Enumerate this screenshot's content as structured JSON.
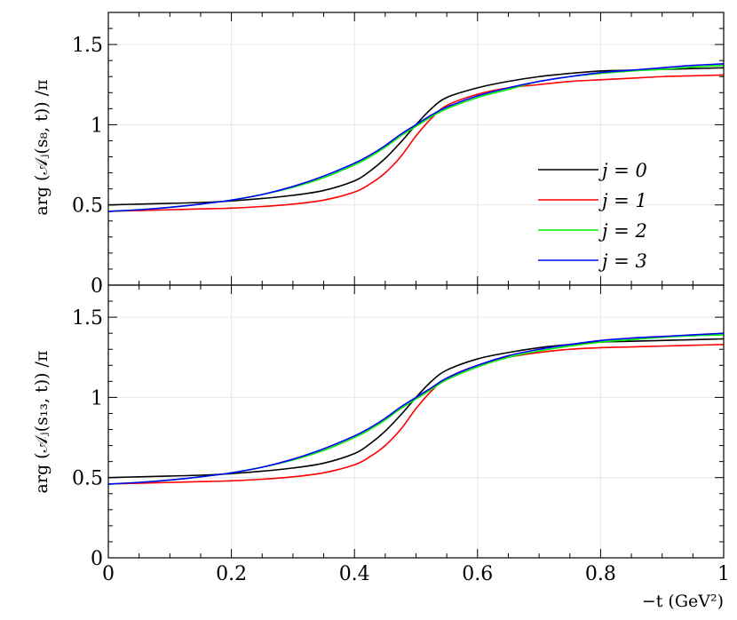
{
  "chart_data": [
    {
      "type": "line",
      "panel": "top",
      "ylabel": "arg (𝒜ⱼ(s₈, t)) /π",
      "xlabel": "",
      "xlim": [
        0,
        1
      ],
      "ylim": [
        0,
        1.7
      ],
      "grid": true,
      "legend_position": "right",
      "x_ticks": [],
      "y_ticks": [
        "0",
        "0.5",
        "1",
        "1.5"
      ],
      "x": [
        0,
        0.05,
        0.1,
        0.15,
        0.2,
        0.25,
        0.3,
        0.35,
        0.4,
        0.425,
        0.45,
        0.475,
        0.5,
        0.525,
        0.55,
        0.6,
        0.65,
        0.7,
        0.75,
        0.8,
        0.85,
        0.9,
        0.95,
        1.0
      ],
      "series": [
        {
          "name": "j = 0",
          "color": "#000000",
          "values": [
            0.5,
            0.505,
            0.51,
            0.515,
            0.525,
            0.54,
            0.56,
            0.59,
            0.65,
            0.71,
            0.79,
            0.89,
            1.0,
            1.1,
            1.17,
            1.23,
            1.27,
            1.3,
            1.32,
            1.335,
            1.34,
            1.345,
            1.35,
            1.355
          ]
        },
        {
          "name": "j = 1",
          "color": "#ff0000",
          "values": [
            0.46,
            0.465,
            0.47,
            0.475,
            0.48,
            0.49,
            0.505,
            0.53,
            0.58,
            0.63,
            0.7,
            0.8,
            0.93,
            1.04,
            1.12,
            1.19,
            1.23,
            1.25,
            1.27,
            1.28,
            1.29,
            1.3,
            1.305,
            1.31
          ]
        },
        {
          "name": "j = 2",
          "color": "#00ee00",
          "values": [
            0.46,
            0.47,
            0.485,
            0.505,
            0.53,
            0.565,
            0.61,
            0.67,
            0.75,
            0.8,
            0.86,
            0.93,
            0.99,
            1.05,
            1.1,
            1.17,
            1.22,
            1.27,
            1.3,
            1.32,
            1.335,
            1.345,
            1.36,
            1.37
          ]
        },
        {
          "name": "j = 3",
          "color": "#0000ff",
          "values": [
            0.46,
            0.47,
            0.485,
            0.505,
            0.53,
            0.565,
            0.615,
            0.68,
            0.76,
            0.81,
            0.87,
            0.94,
            1.0,
            1.06,
            1.11,
            1.18,
            1.23,
            1.27,
            1.3,
            1.325,
            1.34,
            1.355,
            1.37,
            1.38
          ]
        }
      ]
    },
    {
      "type": "line",
      "panel": "bottom",
      "ylabel": "arg (𝒜ⱼ(s₁₃, t)) /π",
      "xlabel": "−t (GeV²)",
      "xlim": [
        0,
        1
      ],
      "ylim": [
        0,
        1.7
      ],
      "grid": true,
      "x_ticks": [
        "0",
        "0.2",
        "0.4",
        "0.6",
        "0.8",
        "1"
      ],
      "y_ticks": [
        "0",
        "0.5",
        "1",
        "1.5"
      ],
      "x": [
        0,
        0.05,
        0.1,
        0.15,
        0.2,
        0.25,
        0.3,
        0.35,
        0.4,
        0.425,
        0.45,
        0.475,
        0.5,
        0.525,
        0.55,
        0.6,
        0.65,
        0.7,
        0.75,
        0.8,
        0.85,
        0.9,
        0.95,
        1.0
      ],
      "series": [
        {
          "name": "j = 0",
          "color": "#000000",
          "values": [
            0.5,
            0.505,
            0.51,
            0.515,
            0.525,
            0.54,
            0.56,
            0.59,
            0.65,
            0.71,
            0.79,
            0.89,
            1.0,
            1.1,
            1.17,
            1.24,
            1.28,
            1.31,
            1.33,
            1.345,
            1.35,
            1.355,
            1.36,
            1.365
          ]
        },
        {
          "name": "j = 1",
          "color": "#ff0000",
          "values": [
            0.46,
            0.465,
            0.47,
            0.475,
            0.48,
            0.49,
            0.505,
            0.53,
            0.58,
            0.63,
            0.7,
            0.8,
            0.93,
            1.04,
            1.12,
            1.2,
            1.25,
            1.28,
            1.3,
            1.31,
            1.315,
            1.32,
            1.325,
            1.33
          ]
        },
        {
          "name": "j = 2",
          "color": "#00ee00",
          "values": [
            0.46,
            0.47,
            0.485,
            0.505,
            0.53,
            0.565,
            0.61,
            0.67,
            0.75,
            0.8,
            0.86,
            0.93,
            0.99,
            1.05,
            1.11,
            1.19,
            1.25,
            1.29,
            1.32,
            1.345,
            1.36,
            1.375,
            1.385,
            1.39
          ]
        },
        {
          "name": "j = 3",
          "color": "#0000ff",
          "values": [
            0.46,
            0.47,
            0.485,
            0.505,
            0.53,
            0.565,
            0.615,
            0.68,
            0.76,
            0.81,
            0.87,
            0.94,
            1.0,
            1.06,
            1.12,
            1.2,
            1.26,
            1.3,
            1.33,
            1.355,
            1.37,
            1.38,
            1.39,
            1.4
          ]
        }
      ]
    }
  ]
}
